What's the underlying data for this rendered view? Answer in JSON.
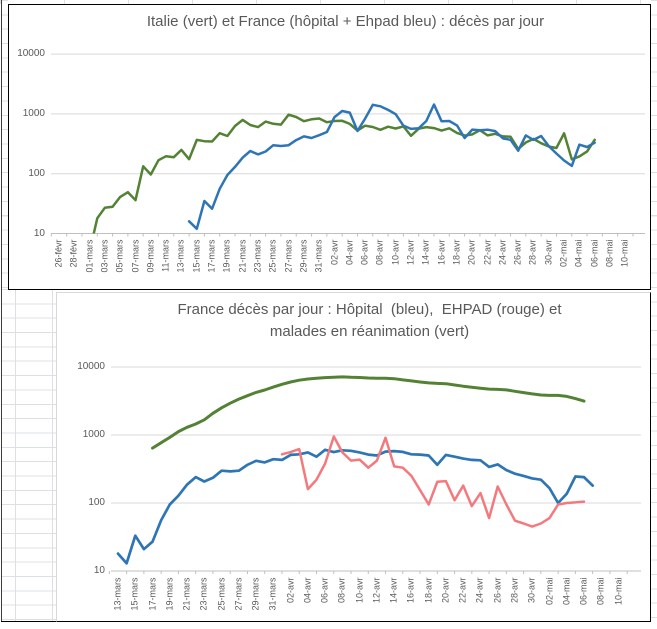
{
  "sheet": {
    "background": "#ffffff",
    "gridline_color": "#dce0e6"
  },
  "chart_data": [
    {
      "id": "italie-france",
      "type": "line",
      "title": "Italie (vert) et France (hôpital + Ehpad bleu) : décès par jour",
      "y_scale": "log",
      "y_ticks": [
        10,
        100,
        1000,
        10000
      ],
      "ylim": [
        10,
        10000
      ],
      "grid": true,
      "legend": "none",
      "days_per_category": 2,
      "categories": [
        "26-févr",
        "28-févr",
        "01-mars",
        "03-mars",
        "05-mars",
        "07-mars",
        "09-mars",
        "11-mars",
        "13-mars",
        "15-mars",
        "17-mars",
        "19-mars",
        "21-mars",
        "23-mars",
        "25-mars",
        "27-mars",
        "29-mars",
        "31-mars",
        "02-avr",
        "04-avr",
        "06-avr",
        "08-avr",
        "10-avr",
        "12-avr",
        "14-avr",
        "16-avr",
        "18-avr",
        "20-avr",
        "22-avr",
        "24-avr",
        "26-avr",
        "28-avr",
        "30-avr",
        "02-mai",
        "04-mai",
        "06-mai",
        "08-mai",
        "10-mai"
      ],
      "series": [
        {
          "name": "Italie",
          "color": "#548235",
          "start_day": 4,
          "start_date": "01-mars",
          "values": [
            5,
            18,
            27,
            28,
            41,
            49,
            36,
            133,
            97,
            168,
            196,
            189,
            250,
            175,
            368,
            349,
            345,
            475,
            427,
            627,
            793,
            651,
            601,
            743,
            683,
            662,
            969,
            889,
            756,
            812,
            837,
            727,
            760,
            766,
            681,
            525,
            636,
            604,
            542,
            610,
            570,
            619,
            431,
            566,
            602,
            578,
            525,
            575,
            482,
            433,
            454,
            534,
            437,
            464,
            420,
            415,
            260,
            333,
            382,
            323,
            285,
            269,
            474,
            174,
            195,
            236,
            369
          ]
        },
        {
          "name": "France (hôpital + Ehpad)",
          "color": "#2E75B6",
          "start_day": 17,
          "start_date": "14-mars",
          "values": [
            16,
            12,
            35,
            26,
            56,
            95,
            130,
            186,
            240,
            210,
            235,
            300,
            290,
            300,
            365,
            420,
            395,
            441,
            499,
            884,
            1120,
            1053,
            518,
            833,
            1417,
            1341,
            1166,
            987,
            635,
            561,
            574,
            762,
            1438,
            753,
            761,
            642,
            395,
            547,
            531,
            544,
            516,
            389,
            369,
            242,
            437,
            367,
            427,
            289,
            218,
            166,
            135,
            306,
            280,
            330
          ]
        }
      ]
    },
    {
      "id": "france-detail",
      "type": "line",
      "title_line1": "France décès par jour : Hôpital  (bleu),  EHPAD (rouge) et",
      "title_line2": "malades en réanimation (vert)",
      "y_scale": "log",
      "y_ticks": [
        10,
        100,
        1000,
        10000
      ],
      "ylim": [
        10,
        10000
      ],
      "grid": true,
      "legend": "none",
      "days_per_category": 2,
      "categories": [
        "13-mars",
        "15-mars",
        "17-mars",
        "19-mars",
        "21-mars",
        "23-mars",
        "25-mars",
        "27-mars",
        "29-mars",
        "31-mars",
        "02-avr",
        "04-avr",
        "06-avr",
        "08-avr",
        "10-avr",
        "12-avr",
        "14-avr",
        "16-avr",
        "18-avr",
        "20-avr",
        "22-avr",
        "24-avr",
        "26-avr",
        "28-avr",
        "30-avr",
        "02-mai",
        "04-mai",
        "06-mai",
        "08-mai",
        "10-mai"
      ],
      "series": [
        {
          "name": "Hôpital",
          "color": "#2E75B6",
          "start_day": 0,
          "start_date": "13-mars",
          "values": [
            18,
            13,
            33,
            21,
            27,
            56,
            95,
            128,
            186,
            240,
            207,
            235,
            299,
            292,
            299,
            365,
            418,
            395,
            441,
            430,
            510,
            520,
            555,
            480,
            605,
            560,
            595,
            585,
            555,
            515,
            500,
            570,
            580,
            565,
            520,
            515,
            500,
            365,
            510,
            480,
            450,
            430,
            425,
            340,
            370,
            305,
            270,
            250,
            230,
            220,
            165,
            100,
            137,
            245,
            240,
            180
          ]
        },
        {
          "name": "EHPAD",
          "color": "#F4797D",
          "start_day": 19,
          "start_date": "01-avr",
          "values": [
            520,
            560,
            620,
            160,
            220,
            380,
            950,
            555,
            420,
            435,
            330,
            420,
            910,
            345,
            330,
            250,
            155,
            95,
            205,
            210,
            110,
            180,
            90,
            140,
            60,
            175,
            95,
            55,
            50,
            45,
            50,
            60,
            95,
            100,
            102,
            105
          ]
        },
        {
          "name": "Malades en réanimation",
          "color": "#548235",
          "start_day": 4,
          "start_date": "17-mars",
          "values": [
            642,
            771,
            921,
            1122,
            1297,
            1453,
            1674,
            2082,
            2516,
            2935,
            3375,
            3787,
            4236,
            4592,
            5056,
            5565,
            6017,
            6399,
            6662,
            6838,
            6978,
            7072,
            7148,
            7066,
            7004,
            6883,
            6845,
            6821,
            6730,
            6457,
            6248,
            6027,
            5833,
            5744,
            5683,
            5433,
            5218,
            5053,
            4870,
            4725,
            4682,
            4608,
            4387,
            4207,
            4019,
            3878,
            3827,
            3819,
            3696,
            3430,
            3147
          ]
        }
      ]
    }
  ]
}
